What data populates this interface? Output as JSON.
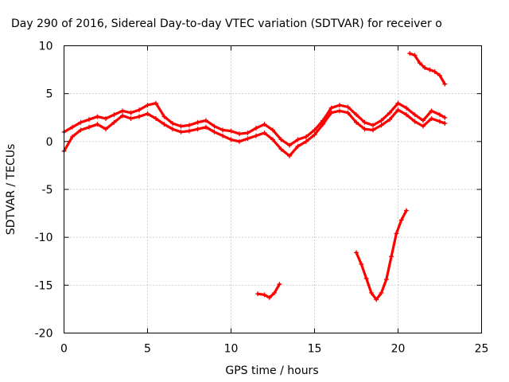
{
  "chart_data": {
    "type": "line",
    "title": "Day 290 of 2016, Sidereal Day-to-day VTEC variation (SDTVAR) for receiver o",
    "xlabel": "GPS time / hours",
    "ylabel": "SDTVAR / TECUs",
    "xlim": [
      0,
      25
    ],
    "ylim": [
      -20,
      10
    ],
    "xticks": [
      "0",
      "5",
      "10",
      "15",
      "20",
      "25"
    ],
    "yticks": [
      "10",
      "5",
      "0",
      "-5",
      "-10",
      "-15",
      "-20"
    ],
    "grid": true,
    "marker": "plus",
    "color": "#ff0000",
    "series": [
      {
        "x": [
          0,
          0.5,
          1,
          1.5,
          2,
          2.5,
          3,
          3.5,
          4,
          4.5,
          5,
          5.5,
          6,
          6.5,
          7,
          7.5,
          8,
          8.5,
          9,
          9.5,
          10,
          10.5,
          11,
          11.5,
          12,
          12.5,
          13,
          13.5,
          14,
          14.5,
          15,
          15.5,
          16,
          16.5,
          17,
          17.5,
          18,
          18.5,
          19,
          19.5,
          20,
          20.5,
          21,
          21.5,
          22,
          22.5,
          22.8
        ],
        "y": [
          1.0,
          1.5,
          2.0,
          2.3,
          2.6,
          2.4,
          2.8,
          3.2,
          3.0,
          3.3,
          3.8,
          4.0,
          2.6,
          1.9,
          1.6,
          1.7,
          2.0,
          2.2,
          1.6,
          1.2,
          1.1,
          0.8,
          0.9,
          1.4,
          1.8,
          1.2,
          0.2,
          -0.4,
          0.2,
          0.5,
          1.2,
          2.2,
          3.5,
          3.8,
          3.6,
          2.8,
          2.0,
          1.7,
          2.2,
          3.0,
          4.0,
          3.5,
          2.8,
          2.2,
          3.2,
          2.8,
          2.5
        ]
      },
      {
        "x": [
          0,
          0.5,
          1,
          1.5,
          2,
          2.5,
          3,
          3.5,
          4,
          4.5,
          5,
          5.5,
          6,
          6.5,
          7,
          7.5,
          8,
          8.5,
          9,
          9.5,
          10,
          10.5,
          11,
          11.5,
          12,
          12.5,
          13,
          13.5,
          14,
          14.5,
          15,
          15.5,
          16,
          16.5,
          17,
          17.5,
          18,
          18.5,
          19,
          19.5,
          20,
          20.5,
          21,
          21.5,
          22,
          22.5,
          22.8
        ],
        "y": [
          -1.0,
          0.5,
          1.2,
          1.5,
          1.8,
          1.3,
          2.0,
          2.7,
          2.4,
          2.6,
          2.9,
          2.4,
          1.8,
          1.3,
          1.0,
          1.1,
          1.3,
          1.5,
          1.0,
          0.6,
          0.2,
          0.0,
          0.3,
          0.6,
          0.9,
          0.2,
          -0.8,
          -1.5,
          -0.5,
          0.0,
          0.7,
          1.8,
          3.0,
          3.2,
          3.0,
          2.0,
          1.3,
          1.2,
          1.7,
          2.3,
          3.3,
          2.8,
          2.1,
          1.6,
          2.4,
          2.1,
          1.9
        ]
      },
      {
        "x": [
          11.6,
          12.0,
          12.3,
          12.6,
          12.9
        ],
        "y": [
          -15.9,
          -16.0,
          -16.3,
          -15.8,
          -14.9
        ]
      },
      {
        "x": [
          17.5,
          17.8,
          18.1,
          18.4,
          18.7,
          19.0,
          19.3,
          19.6,
          19.9,
          20.2,
          20.5
        ],
        "y": [
          -11.6,
          -12.8,
          -14.3,
          -15.8,
          -16.5,
          -15.8,
          -14.4,
          -12.0,
          -9.6,
          -8.2,
          -7.2
        ]
      },
      {
        "x": [
          20.7,
          21.0,
          21.3,
          21.6,
          21.9,
          22.2,
          22.5,
          22.8
        ],
        "y": [
          9.2,
          9.0,
          8.2,
          7.7,
          7.5,
          7.3,
          6.9,
          6.0
        ]
      }
    ]
  }
}
